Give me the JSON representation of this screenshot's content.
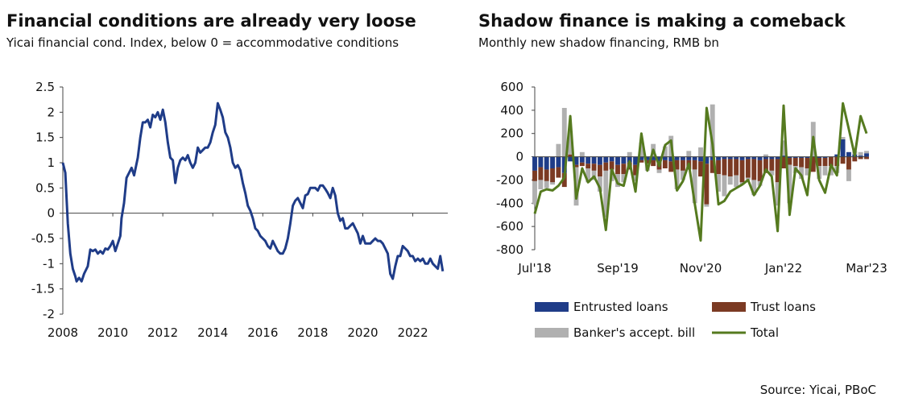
{
  "source": "Source: Yicai, PBoC",
  "colors": {
    "fci_line": "#1f3c88",
    "entrusted": "#1f3c88",
    "trust": "#7b3a23",
    "bankers": "#b0b0b0",
    "total": "#557a1f",
    "axis": "#444444"
  },
  "chart_data": [
    {
      "type": "line",
      "title": "Financial conditions are already very loose",
      "subtitle": "Yicai financial cond. Index, below 0 = accommodative conditions",
      "xlabel": "",
      "ylabel": "",
      "xlim": [
        2008,
        2023.4
      ],
      "ylim": [
        -2,
        2.5
      ],
      "x_ticks": [
        2008,
        2010,
        2012,
        2014,
        2016,
        2018,
        2020,
        2022
      ],
      "x_tick_labels": [
        "2008",
        "2010",
        "2012",
        "2014",
        "2016",
        "2018",
        "2020",
        "2022"
      ],
      "y_ticks": [
        2.5,
        2,
        1.5,
        1,
        0.5,
        0,
        -0.5,
        -1,
        -1.5,
        -2
      ],
      "y_tick_labels": [
        "2.5",
        "2",
        "1.5",
        "1",
        "0.5",
        "0",
        "-0.5",
        "-1",
        "-1.5",
        "-2"
      ],
      "series": [
        {
          "name": "Yicai financial conditions index",
          "x": [
            2008.0,
            2008.1,
            2008.2,
            2008.3,
            2008.4,
            2008.5,
            2008.55,
            2008.65,
            2008.75,
            2008.85,
            2009.0,
            2009.1,
            2009.2,
            2009.3,
            2009.4,
            2009.5,
            2009.6,
            2009.7,
            2009.8,
            2009.9,
            2010.0,
            2010.1,
            2010.2,
            2010.3,
            2010.35,
            2010.45,
            2010.55,
            2010.65,
            2010.75,
            2010.85,
            2011.0,
            2011.1,
            2011.2,
            2011.3,
            2011.4,
            2011.5,
            2011.6,
            2011.7,
            2011.8,
            2011.9,
            2012.0,
            2012.1,
            2012.2,
            2012.3,
            2012.4,
            2012.5,
            2012.6,
            2012.7,
            2012.8,
            2012.9,
            2013.0,
            2013.1,
            2013.2,
            2013.3,
            2013.4,
            2013.5,
            2013.6,
            2013.7,
            2013.8,
            2013.9,
            2014.0,
            2014.1,
            2014.2,
            2014.3,
            2014.4,
            2014.5,
            2014.6,
            2014.7,
            2014.8,
            2014.9,
            2015.0,
            2015.1,
            2015.2,
            2015.3,
            2015.4,
            2015.5,
            2015.6,
            2015.7,
            2015.8,
            2015.9,
            2016.0,
            2016.1,
            2016.2,
            2016.3,
            2016.4,
            2016.5,
            2016.6,
            2016.7,
            2016.8,
            2016.9,
            2017.0,
            2017.1,
            2017.2,
            2017.3,
            2017.4,
            2017.5,
            2017.6,
            2017.7,
            2017.8,
            2017.9,
            2018.0,
            2018.1,
            2018.2,
            2018.3,
            2018.4,
            2018.5,
            2018.6,
            2018.7,
            2018.8,
            2018.9,
            2019.0,
            2019.1,
            2019.2,
            2019.3,
            2019.4,
            2019.5,
            2019.6,
            2019.7,
            2019.8,
            2019.9,
            2020.0,
            2020.1,
            2020.2,
            2020.3,
            2020.4,
            2020.5,
            2020.6,
            2020.7,
            2020.8,
            2020.9,
            2021.0,
            2021.1,
            2021.2,
            2021.3,
            2021.4,
            2021.5,
            2021.6,
            2021.7,
            2021.8,
            2021.9,
            2022.0,
            2022.1,
            2022.2,
            2022.3,
            2022.4,
            2022.5,
            2022.6,
            2022.7,
            2022.8,
            2022.9,
            2023.0,
            2023.1,
            2023.2
          ],
          "y": [
            1.0,
            0.8,
            -0.2,
            -0.8,
            -1.1,
            -1.25,
            -1.35,
            -1.28,
            -1.35,
            -1.2,
            -1.05,
            -0.72,
            -0.75,
            -0.72,
            -0.8,
            -0.75,
            -0.8,
            -0.7,
            -0.72,
            -0.65,
            -0.55,
            -0.75,
            -0.6,
            -0.45,
            -0.1,
            0.2,
            0.7,
            0.8,
            0.9,
            0.75,
            1.1,
            1.5,
            1.8,
            1.8,
            1.85,
            1.7,
            1.95,
            1.9,
            2.0,
            1.85,
            2.05,
            1.8,
            1.4,
            1.1,
            1.05,
            0.6,
            0.9,
            1.05,
            1.1,
            1.05,
            1.15,
            1.0,
            0.9,
            1.0,
            1.3,
            1.2,
            1.25,
            1.3,
            1.3,
            1.4,
            1.6,
            1.75,
            2.18,
            2.05,
            1.9,
            1.6,
            1.5,
            1.3,
            1.0,
            0.9,
            0.95,
            0.85,
            0.6,
            0.4,
            0.15,
            0.05,
            -0.1,
            -0.3,
            -0.35,
            -0.45,
            -0.5,
            -0.55,
            -0.65,
            -0.7,
            -0.55,
            -0.65,
            -0.75,
            -0.8,
            -0.8,
            -0.7,
            -0.5,
            -0.2,
            0.15,
            0.25,
            0.3,
            0.2,
            0.1,
            0.35,
            0.38,
            0.5,
            0.5,
            0.5,
            0.45,
            0.55,
            0.55,
            0.48,
            0.4,
            0.3,
            0.5,
            0.35,
            0.0,
            -0.15,
            -0.1,
            -0.3,
            -0.3,
            -0.25,
            -0.2,
            -0.3,
            -0.4,
            -0.6,
            -0.45,
            -0.6,
            -0.6,
            -0.6,
            -0.55,
            -0.5,
            -0.55,
            -0.55,
            -0.6,
            -0.7,
            -0.8,
            -1.2,
            -1.3,
            -1.05,
            -0.85,
            -0.85,
            -0.65,
            -0.7,
            -0.75,
            -0.85,
            -0.85,
            -0.95,
            -0.9,
            -0.95,
            -0.9,
            -1.0,
            -1.0,
            -0.9,
            -1.0,
            -1.05,
            -1.1,
            -0.85,
            -1.15
          ]
        }
      ]
    },
    {
      "type": "bar",
      "stacked": true,
      "title": "Shadow finance is making a comeback",
      "subtitle": "Monthly new shadow financing, RMB bn",
      "xlabel": "",
      "ylabel": "",
      "ylim": [
        -800,
        600
      ],
      "y_ticks": [
        600,
        400,
        200,
        0,
        -200,
        -400,
        -600,
        -800
      ],
      "y_tick_labels": [
        "600",
        "400",
        "200",
        "0",
        "-200",
        "-400",
        "-600",
        "-800"
      ],
      "x_ticks_index": [
        0,
        14,
        28,
        42,
        56
      ],
      "x_tick_labels": [
        "Jul'18",
        "Sep'19",
        "Nov'20",
        "Jan'22",
        "Mar'23"
      ],
      "categories": [
        "Jul'18",
        "Aug'18",
        "Sep'18",
        "Oct'18",
        "Nov'18",
        "Dec'18",
        "Jan'19",
        "Feb'19",
        "Mar'19",
        "Apr'19",
        "May'19",
        "Jun'19",
        "Jul'19",
        "Aug'19",
        "Sep'19",
        "Oct'19",
        "Nov'19",
        "Dec'19",
        "Jan'20",
        "Feb'20",
        "Mar'20",
        "Apr'20",
        "May'20",
        "Jun'20",
        "Jul'20",
        "Aug'20",
        "Sep'20",
        "Oct'20",
        "Nov'20",
        "Dec'20",
        "Jan'21",
        "Feb'21",
        "Mar'21",
        "Apr'21",
        "May'21",
        "Jun'21",
        "Jul'21",
        "Aug'21",
        "Sep'21",
        "Oct'21",
        "Nov'21",
        "Dec'21",
        "Jan'22",
        "Feb'22",
        "Mar'22",
        "Apr'22",
        "May'22",
        "Jun'22",
        "Jul'22",
        "Aug'22",
        "Sep'22",
        "Oct'22",
        "Nov'22",
        "Dec'22",
        "Jan'23",
        "Feb'23",
        "Mar'23"
      ],
      "series": [
        {
          "name": "Entrusted loans",
          "values": [
            -120,
            -90,
            -110,
            -100,
            -90,
            -140,
            -40,
            -70,
            -50,
            -60,
            -60,
            -70,
            -50,
            -40,
            -70,
            -60,
            -50,
            -70,
            -30,
            -30,
            -30,
            -40,
            -30,
            -40,
            -30,
            -30,
            -30,
            -30,
            -40,
            -60,
            -30,
            -30,
            -20,
            -20,
            -20,
            -30,
            -20,
            -20,
            -30,
            -20,
            -20,
            -20,
            10,
            -10,
            -10,
            -10,
            -10,
            0,
            -10,
            -10,
            0,
            20,
            150,
            40,
            20,
            10,
            30
          ]
        },
        {
          "name": "Trust loans",
          "values": [
            -90,
            -110,
            -100,
            -120,
            -90,
            -120,
            20,
            -20,
            -30,
            -40,
            -60,
            -100,
            -70,
            -70,
            -80,
            -90,
            -60,
            -90,
            -20,
            -30,
            -50,
            -70,
            -70,
            -90,
            -80,
            -90,
            -80,
            -80,
            -130,
            -350,
            -110,
            -120,
            -140,
            -150,
            -140,
            -190,
            -160,
            -180,
            -180,
            -120,
            -100,
            -200,
            -100,
            -60,
            -70,
            -80,
            -90,
            -130,
            -70,
            -70,
            -80,
            -80,
            -60,
            -110,
            -40,
            -20,
            -20
          ]
        },
        {
          "name": "Banker's accept. bill",
          "values": [
            -200,
            -80,
            -60,
            -20,
            110,
            420,
            200,
            -330,
            40,
            -120,
            -80,
            -130,
            -400,
            -100,
            -110,
            -70,
            40,
            -50,
            120,
            -60,
            110,
            -30,
            90,
            180,
            -170,
            -80,
            50,
            -290,
            80,
            -20,
            450,
            -150,
            -180,
            -70,
            -100,
            -20,
            -20,
            -130,
            -40,
            20,
            -40,
            -200,
            130,
            -330,
            -60,
            -100,
            -60,
            300,
            -110,
            -80,
            -80,
            -60,
            20,
            -100,
            30,
            30,
            20
          ]
        },
        {
          "name": "Total",
          "values": [
            -490,
            -300,
            -280,
            -290,
            -250,
            -180,
            350,
            -360,
            -100,
            -220,
            -170,
            -270,
            -630,
            -110,
            -230,
            -250,
            -40,
            -300,
            200,
            -120,
            60,
            -80,
            100,
            140,
            -290,
            -210,
            -60,
            -400,
            -720,
            420,
            110,
            -410,
            -380,
            -300,
            -270,
            -240,
            -200,
            -330,
            -250,
            -110,
            -170,
            -640,
            440,
            -500,
            -100,
            -160,
            -330,
            170,
            -200,
            -310,
            -70,
            -160,
            460,
            240,
            10,
            350,
            200
          ]
        }
      ]
    }
  ],
  "legend": {
    "entrusted": "Entrusted loans",
    "trust": "Trust loans",
    "bankers": "Banker's accept. bill",
    "total": "Total"
  }
}
